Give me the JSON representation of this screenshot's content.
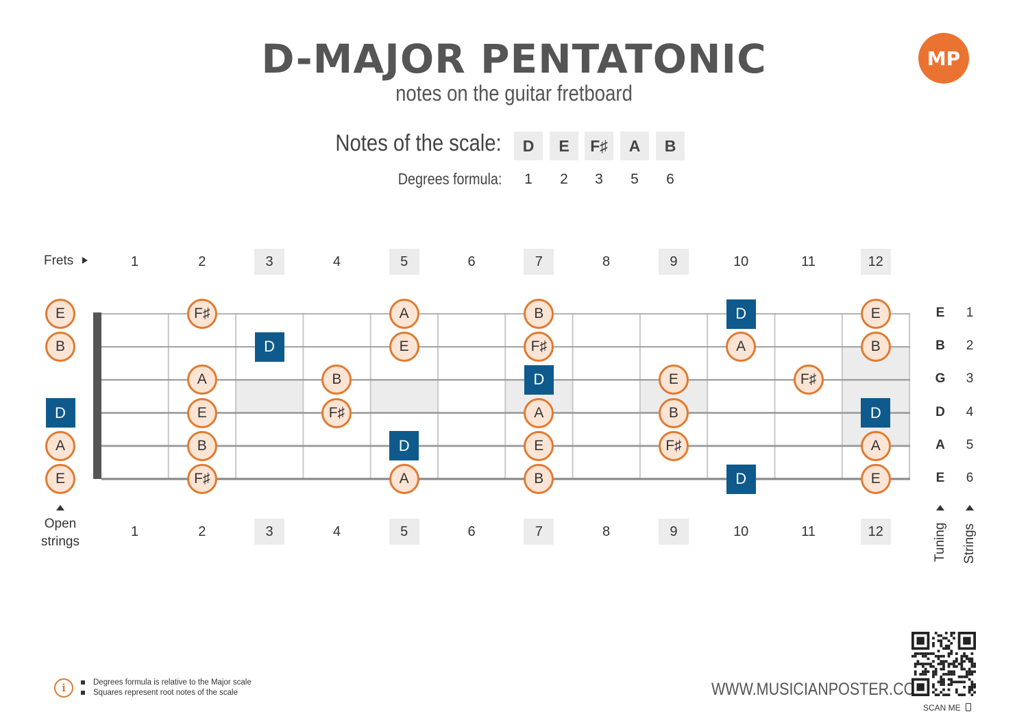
{
  "title": "D-MAJOR PENTATONIC",
  "subtitle": "notes on the guitar fretboard",
  "logo": "MP",
  "scale": {
    "notes_label": "Notes of the scale:",
    "degrees_label": "Degrees formula:",
    "notes": [
      "D",
      "E",
      "F♯",
      "A",
      "B"
    ],
    "degrees": [
      "1",
      "2",
      "3",
      "5",
      "6"
    ]
  },
  "fretboard": {
    "frets_label": "Frets",
    "fret_numbers": [
      "1",
      "2",
      "3",
      "4",
      "5",
      "6",
      "7",
      "8",
      "9",
      "10",
      "11",
      "12"
    ],
    "marker_frets": [
      3,
      5,
      7,
      9,
      12
    ],
    "open_strings_label": [
      "Open",
      "strings"
    ],
    "tuning_label": "Tuning",
    "strings_label": "Strings",
    "tuning": [
      "E",
      "B",
      "G",
      "D",
      "A",
      "E"
    ],
    "string_numbers": [
      "1",
      "2",
      "3",
      "4",
      "5",
      "6"
    ],
    "open_notes": [
      {
        "string": 1,
        "note": "E",
        "root": false
      },
      {
        "string": 2,
        "note": "B",
        "root": false
      },
      {
        "string": 4,
        "note": "D",
        "root": true
      },
      {
        "string": 5,
        "note": "A",
        "root": false
      },
      {
        "string": 6,
        "note": "E",
        "root": false
      }
    ],
    "notes": [
      {
        "string": 1,
        "fret": 2,
        "note": "F♯",
        "root": false
      },
      {
        "string": 1,
        "fret": 5,
        "note": "A",
        "root": false
      },
      {
        "string": 1,
        "fret": 7,
        "note": "B",
        "root": false
      },
      {
        "string": 1,
        "fret": 10,
        "note": "D",
        "root": true
      },
      {
        "string": 1,
        "fret": 12,
        "note": "E",
        "root": false
      },
      {
        "string": 2,
        "fret": 3,
        "note": "D",
        "root": true
      },
      {
        "string": 2,
        "fret": 5,
        "note": "E",
        "root": false
      },
      {
        "string": 2,
        "fret": 7,
        "note": "F♯",
        "root": false
      },
      {
        "string": 2,
        "fret": 10,
        "note": "A",
        "root": false
      },
      {
        "string": 2,
        "fret": 12,
        "note": "B",
        "root": false
      },
      {
        "string": 3,
        "fret": 2,
        "note": "A",
        "root": false
      },
      {
        "string": 3,
        "fret": 4,
        "note": "B",
        "root": false
      },
      {
        "string": 3,
        "fret": 7,
        "note": "D",
        "root": true
      },
      {
        "string": 3,
        "fret": 9,
        "note": "E",
        "root": false
      },
      {
        "string": 3,
        "fret": 11,
        "note": "F♯",
        "root": false
      },
      {
        "string": 4,
        "fret": 2,
        "note": "E",
        "root": false
      },
      {
        "string": 4,
        "fret": 4,
        "note": "F♯",
        "root": false
      },
      {
        "string": 4,
        "fret": 7,
        "note": "A",
        "root": false
      },
      {
        "string": 4,
        "fret": 9,
        "note": "B",
        "root": false
      },
      {
        "string": 4,
        "fret": 12,
        "note": "D",
        "root": true
      },
      {
        "string": 5,
        "fret": 2,
        "note": "B",
        "root": false
      },
      {
        "string": 5,
        "fret": 5,
        "note": "D",
        "root": true
      },
      {
        "string": 5,
        "fret": 7,
        "note": "E",
        "root": false
      },
      {
        "string": 5,
        "fret": 9,
        "note": "F♯",
        "root": false
      },
      {
        "string": 5,
        "fret": 12,
        "note": "A",
        "root": false
      },
      {
        "string": 6,
        "fret": 2,
        "note": "F♯",
        "root": false
      },
      {
        "string": 6,
        "fret": 5,
        "note": "A",
        "root": false
      },
      {
        "string": 6,
        "fret": 7,
        "note": "B",
        "root": false
      },
      {
        "string": 6,
        "fret": 10,
        "note": "D",
        "root": true
      },
      {
        "string": 6,
        "fret": 12,
        "note": "E",
        "root": false
      }
    ]
  },
  "footer": {
    "notes": [
      "Degrees formula is relative to the Major scale",
      "Squares represent root notes of the scale"
    ],
    "website": "WWW.MUSICIANPOSTER.COM",
    "scan_me": "SCAN ME"
  },
  "colors": {
    "note_fill": "#fbe4d4",
    "note_border": "#e07a30",
    "root_fill": "#0e5a8c",
    "marker_fill": "#ececec",
    "logo": "#ea7331"
  }
}
